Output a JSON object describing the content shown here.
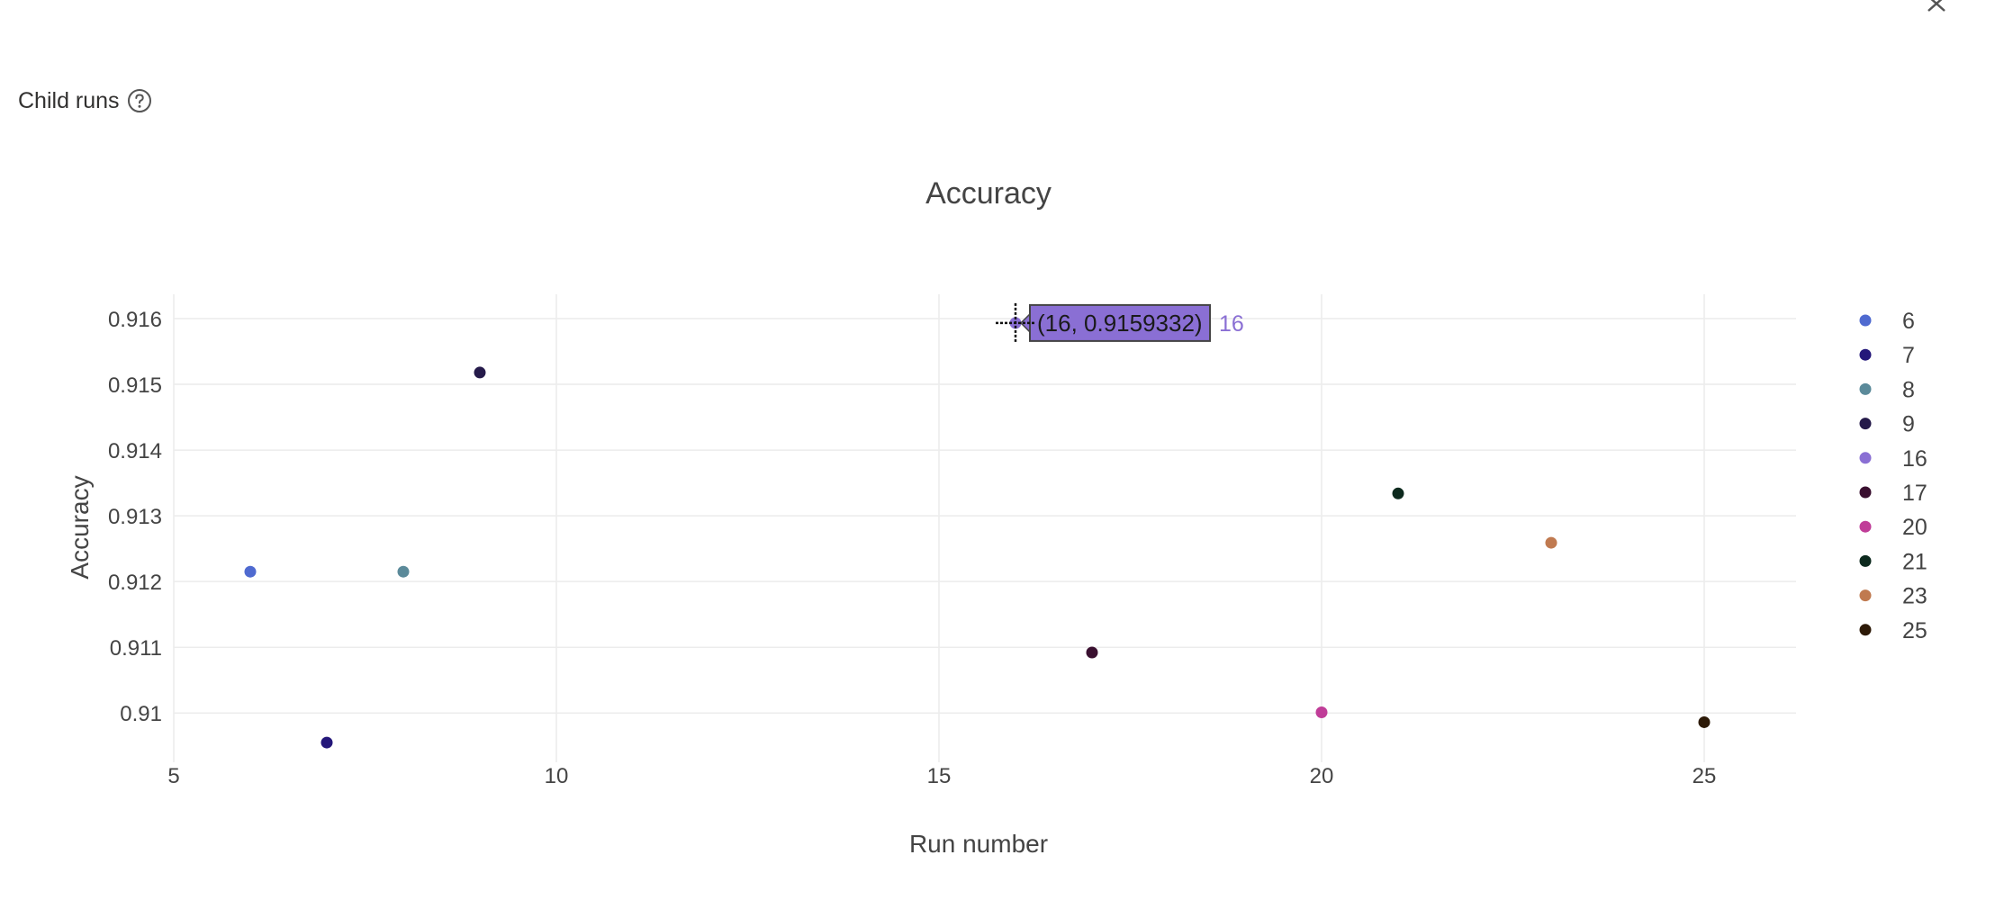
{
  "header": {
    "title": "Child runs",
    "help_icon": "question-circle-icon"
  },
  "close_icon": "close-icon",
  "chart_data": {
    "type": "scatter",
    "title": "Accuracy",
    "xlabel": "Run number",
    "ylabel": "Accuracy",
    "xlim": [
      5,
      26.2
    ],
    "ylim": [
      0.90925,
      0.91637
    ],
    "xticks": [
      5,
      10,
      15,
      20,
      25
    ],
    "yticks": [
      0.91,
      0.911,
      0.912,
      0.913,
      0.914,
      0.915,
      0.916
    ],
    "ytick_labels": [
      "0.91",
      "0.911",
      "0.912",
      "0.913",
      "0.914",
      "0.915",
      "0.916"
    ],
    "grid": true,
    "legend": "right",
    "series": [
      {
        "name": "6",
        "x": 6,
        "y": 0.91215,
        "color": "#4f6ad0"
      },
      {
        "name": "7",
        "x": 7,
        "y": 0.90955,
        "color": "#24177a"
      },
      {
        "name": "8",
        "x": 8,
        "y": 0.91215,
        "color": "#5b8a9a"
      },
      {
        "name": "9",
        "x": 9,
        "y": 0.91518,
        "color": "#251a4a"
      },
      {
        "name": "16",
        "x": 16,
        "y": 0.9159332,
        "color": "#8a6fd4"
      },
      {
        "name": "17",
        "x": 17,
        "y": 0.91092,
        "color": "#3a1030"
      },
      {
        "name": "20",
        "x": 20,
        "y": 0.91001,
        "color": "#c03d98"
      },
      {
        "name": "21",
        "x": 21,
        "y": 0.91334,
        "color": "#0d2a1e"
      },
      {
        "name": "23",
        "x": 23,
        "y": 0.91259,
        "color": "#c07a50"
      },
      {
        "name": "25",
        "x": 25,
        "y": 0.90986,
        "color": "#2d1a08"
      }
    ],
    "hover": {
      "series": "16",
      "text": "(16, 0.9159332)",
      "label": "16"
    }
  }
}
